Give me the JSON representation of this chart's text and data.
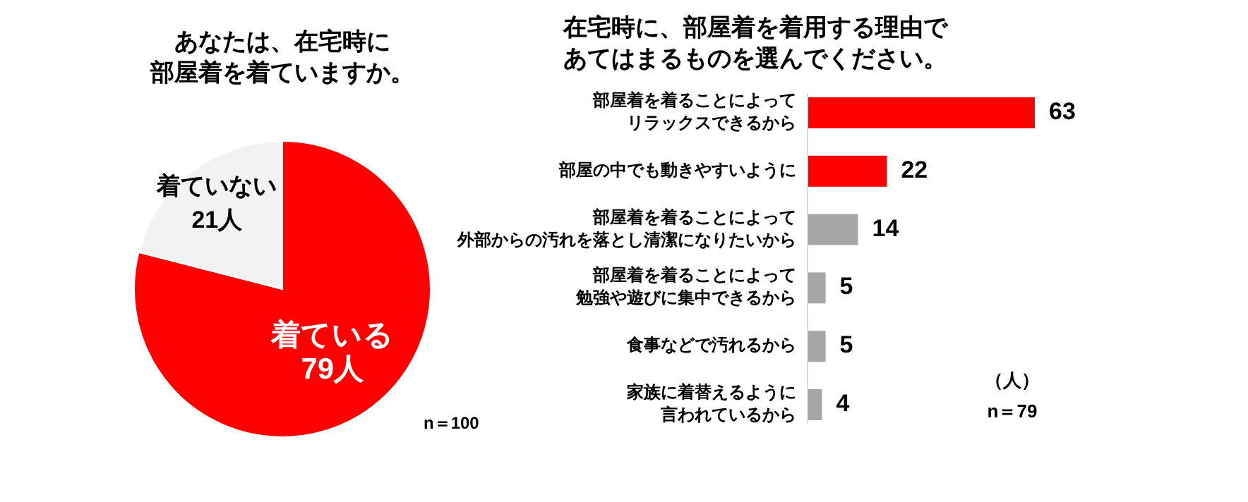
{
  "chart_data": [
    {
      "type": "pie",
      "title": "あなたは、在宅時に部屋着を着ていますか。",
      "categories": [
        "着ている",
        "着ていない"
      ],
      "values": [
        79,
        21
      ],
      "colors": [
        "#ff0000",
        "#f2f2f2"
      ],
      "value_labels": [
        "79人",
        "21人"
      ],
      "annotations": [
        "n＝100"
      ]
    },
    {
      "type": "bar",
      "orientation": "horizontal",
      "title": "在宅時に、部屋着を着用する理由であてはまるものを選んでください。",
      "categories": [
        "部屋着を着ることによってリラックスできるから",
        "部屋の中でも動きやすいように",
        "部屋着を着ることによって外部からの汚れを落とし清潔になりたいから",
        "部屋着を着ることによって勉強や遊びに集中できるから",
        "食事などで汚れるから",
        "家族に着替えるように言われているから"
      ],
      "values": [
        63,
        22,
        14,
        5,
        5,
        4
      ],
      "colors": [
        "#ff0000",
        "#ff0000",
        "#a6a6a6",
        "#a6a6a6",
        "#a6a6a6",
        "#a6a6a6"
      ],
      "data_labels": true,
      "annotations": [
        "（人）",
        "n＝79"
      ]
    }
  ]
}
